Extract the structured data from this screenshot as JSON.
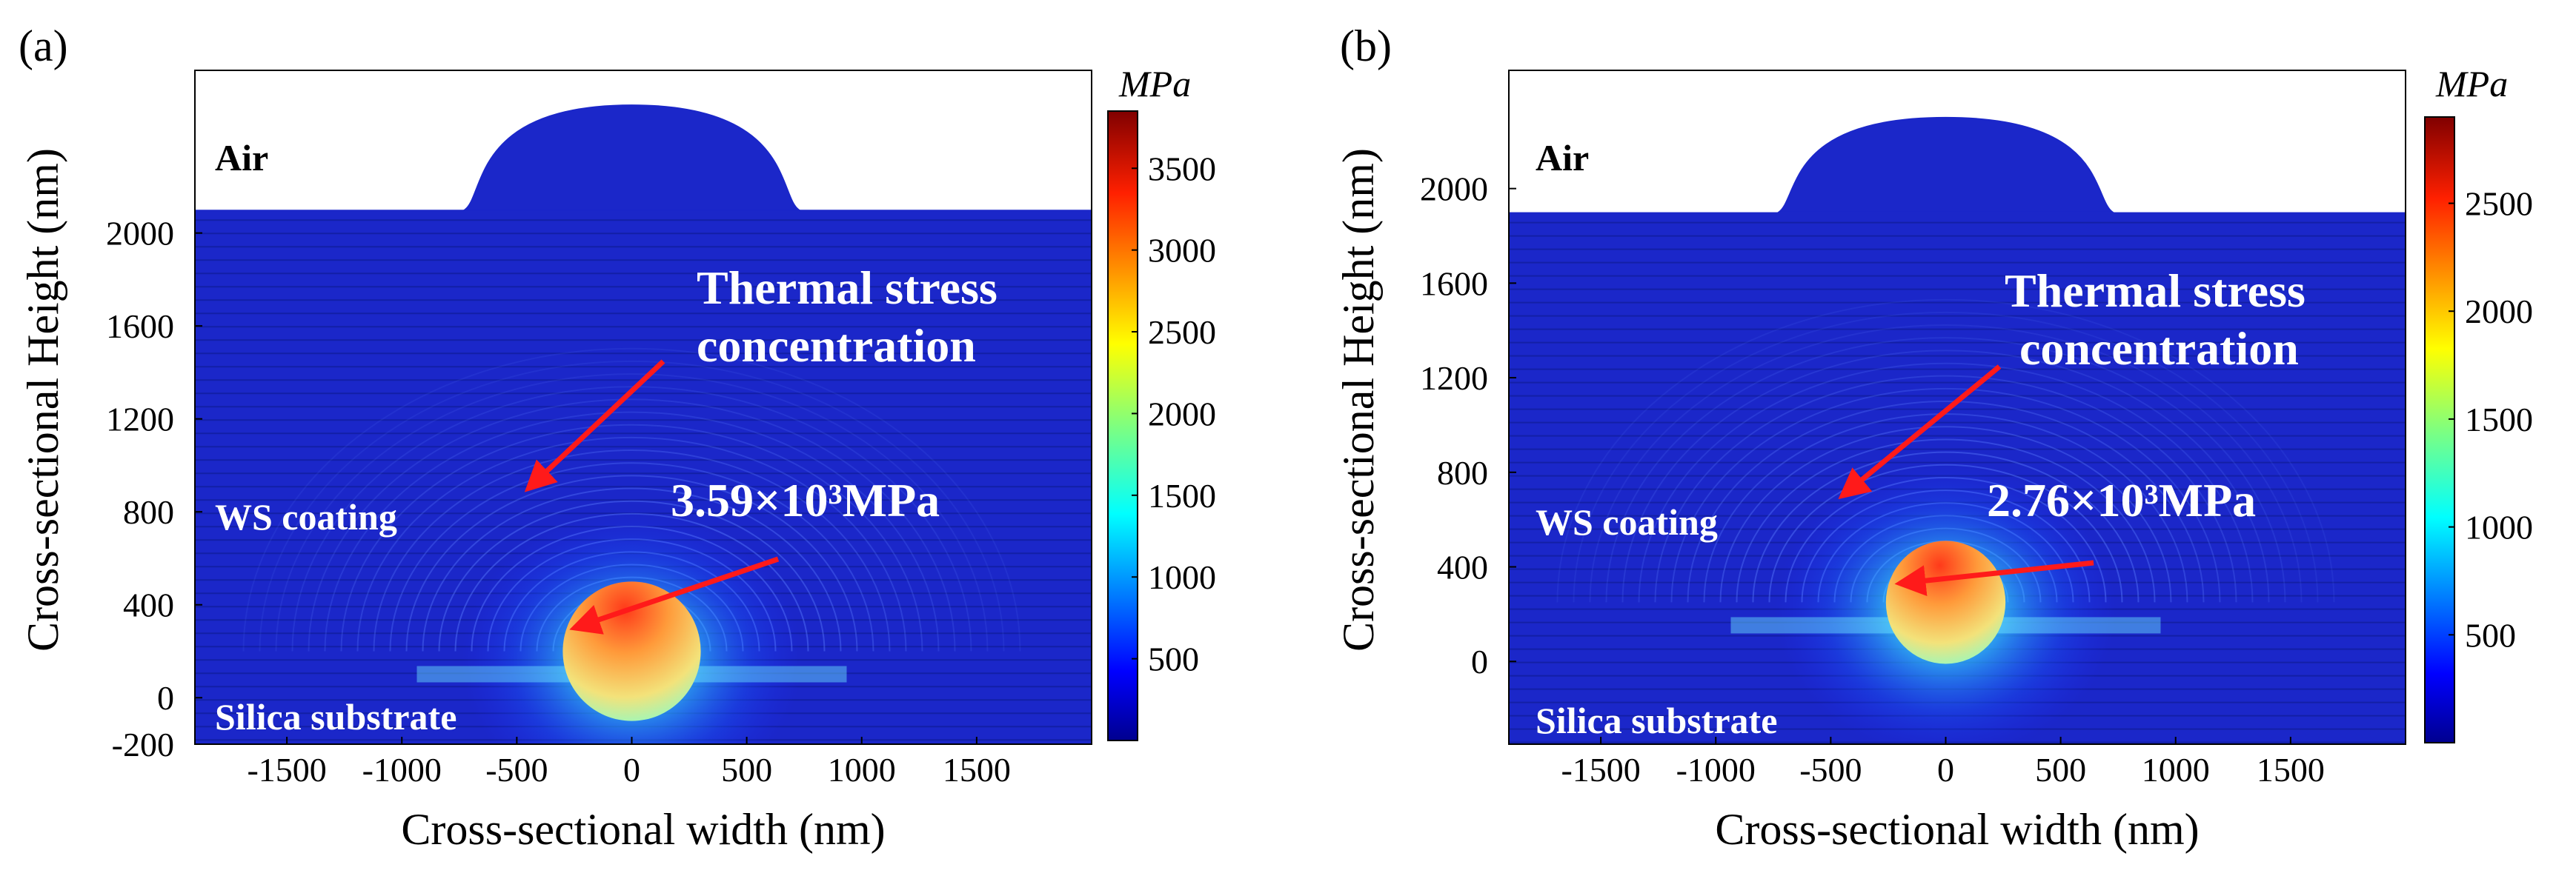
{
  "figure": {
    "panels": [
      {
        "label": "(a)",
        "colorbar": {
          "unit": "MPa",
          "ticks": [
            "500",
            "1000",
            "1500",
            "2000",
            "2500",
            "3000",
            "3500"
          ]
        }
      },
      {
        "label": "(b)",
        "colorbar": {
          "unit": "MPa",
          "ticks": [
            "500",
            "1000",
            "1500",
            "2000",
            "2500"
          ]
        }
      }
    ]
  },
  "chart_data": [
    {
      "type": "heatmap",
      "title": "(a)",
      "xlabel": "Cross-sectional width (nm)",
      "ylabel": "Cross-sectional Height (nm)",
      "x_ticks": [
        -1500,
        -1000,
        -500,
        0,
        500,
        1000,
        1500
      ],
      "x_tick_labels": [
        "-1500",
        "-1000",
        "-500",
        "0",
        "500",
        "1000",
        "1500"
      ],
      "y_ticks": [
        -200,
        0,
        400,
        800,
        1200,
        1600,
        2000
      ],
      "y_tick_labels": [
        "-200",
        "0",
        "400",
        "800",
        "1200",
        "1600",
        "2000"
      ],
      "xlim": [
        -1900,
        2000
      ],
      "ylim": [
        -200,
        2700
      ],
      "surface_height_nm": 2100,
      "bump_radius_nm": 700,
      "bump_apex_nm": 2550,
      "hotspot_center_nm": [
        0,
        200
      ],
      "hotspot_radius_nm": 300,
      "colorbar": {
        "unit": "MPa",
        "min": 0,
        "max": 3850,
        "ticks": [
          500,
          1000,
          1500,
          2000,
          2500,
          3000,
          3500
        ]
      },
      "region_labels": [
        "Air",
        "WS coating",
        "Silica substrate"
      ],
      "annotations": [
        {
          "text_lines": [
            "Thermal stress",
            "concentration"
          ],
          "arrow_tip_nm": [
            -450,
            900
          ]
        },
        {
          "text": "3.59×10³MPa",
          "arrow_tip_nm": [
            -250,
            300
          ]
        }
      ],
      "peak_stress_MPa": 3590
    },
    {
      "type": "heatmap",
      "title": "(b)",
      "xlabel": "Cross-sectional width (nm)",
      "ylabel": "Cross-sectional Height (nm)",
      "x_ticks": [
        -1500,
        -1000,
        -500,
        0,
        500,
        1000,
        1500
      ],
      "x_tick_labels": [
        "-1500",
        "-1000",
        "-500",
        "0",
        "500",
        "1000",
        "1500"
      ],
      "y_ticks": [
        0,
        400,
        800,
        1200,
        1600,
        2000
      ],
      "y_tick_labels": [
        "0",
        "400",
        "800",
        "1200",
        "1600",
        "2000"
      ],
      "xlim": [
        -1900,
        2000
      ],
      "ylim": [
        -350,
        2500
      ],
      "surface_height_nm": 1900,
      "bump_radius_nm": 700,
      "bump_apex_nm": 2300,
      "hotspot_center_nm": [
        0,
        250
      ],
      "hotspot_radius_nm": 260,
      "colorbar": {
        "unit": "MPa",
        "min": 0,
        "max": 2900,
        "ticks": [
          500,
          1000,
          1500,
          2000,
          2500
        ]
      },
      "region_labels": [
        "Air",
        "WS coating",
        "Silica substrate"
      ],
      "annotations": [
        {
          "text_lines": [
            "Thermal stress",
            "concentration"
          ],
          "arrow_tip_nm": [
            -450,
            700
          ]
        },
        {
          "text": "2.76×10³MPa",
          "arrow_tip_nm": [
            -200,
            330
          ]
        }
      ],
      "peak_stress_MPa": 2760
    }
  ]
}
